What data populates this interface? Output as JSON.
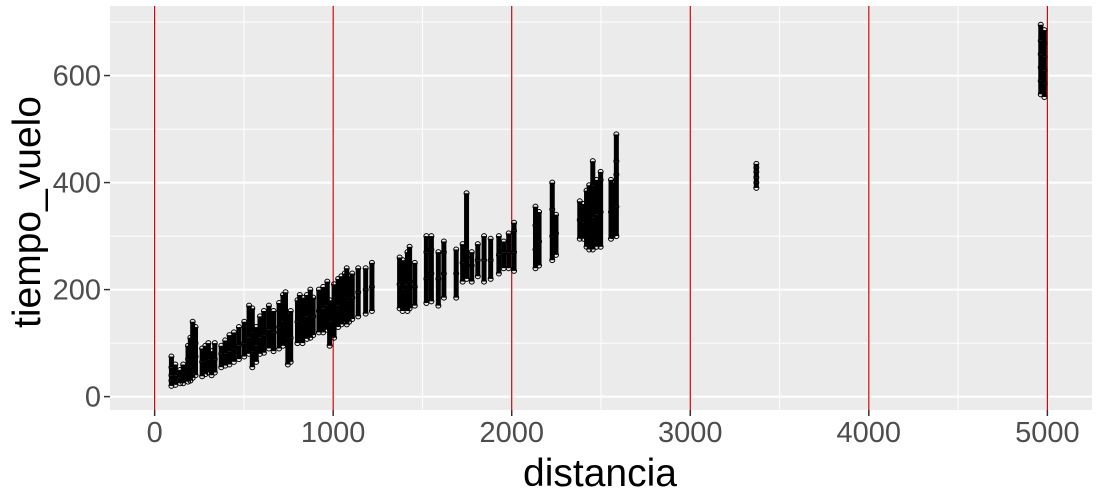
{
  "chart_data": {
    "type": "scatter",
    "xlabel": "distancia",
    "ylabel": "tiempo_vuelo",
    "xlim": [
      -250,
      5250
    ],
    "ylim": [
      -25,
      730
    ],
    "x_ticks": [
      0,
      1000,
      2000,
      3000,
      4000,
      5000
    ],
    "x_tick_labels": [
      "0",
      "1000",
      "2000",
      "3000",
      "4000",
      "5000"
    ],
    "y_ticks": [
      0,
      200,
      400,
      600
    ],
    "y_tick_labels": [
      "0",
      "200",
      "400",
      "600"
    ],
    "x_minor_ticks": [
      500,
      1500,
      2500,
      3500,
      4500
    ],
    "y_minor_ticks": [
      100,
      300,
      500,
      700
    ],
    "grid": true,
    "reference_lines": {
      "orientation": "vertical",
      "x": [
        0,
        1000,
        2000,
        3000,
        4000,
        5000
      ],
      "color": "#cc0000"
    },
    "panel_color": "#ebebeb",
    "grid_color": "#ffffff",
    "point_stroke": "#000000",
    "points": [
      [
        94,
        20
      ],
      [
        94,
        30
      ],
      [
        94,
        40
      ],
      [
        94,
        55
      ],
      [
        94,
        75
      ],
      [
        116,
        22
      ],
      [
        116,
        40
      ],
      [
        116,
        60
      ],
      [
        143,
        25
      ],
      [
        143,
        35
      ],
      [
        143,
        50
      ],
      [
        160,
        25
      ],
      [
        160,
        45
      ],
      [
        160,
        60
      ],
      [
        187,
        28
      ],
      [
        187,
        45
      ],
      [
        187,
        70
      ],
      [
        187,
        95
      ],
      [
        200,
        30
      ],
      [
        200,
        55
      ],
      [
        200,
        85
      ],
      [
        200,
        110
      ],
      [
        213,
        35
      ],
      [
        213,
        70
      ],
      [
        213,
        100
      ],
      [
        213,
        140
      ],
      [
        229,
        40
      ],
      [
        229,
        75
      ],
      [
        229,
        100
      ],
      [
        229,
        130
      ],
      [
        266,
        38
      ],
      [
        266,
        65
      ],
      [
        266,
        90
      ],
      [
        284,
        42
      ],
      [
        284,
        68
      ],
      [
        284,
        95
      ],
      [
        301,
        45
      ],
      [
        301,
        70
      ],
      [
        301,
        100
      ],
      [
        319,
        40
      ],
      [
        319,
        60
      ],
      [
        319,
        85
      ],
      [
        337,
        45
      ],
      [
        337,
        70
      ],
      [
        337,
        100
      ],
      [
        373,
        55
      ],
      [
        373,
        80
      ],
      [
        373,
        95
      ],
      [
        395,
        58
      ],
      [
        395,
        80
      ],
      [
        395,
        105
      ],
      [
        419,
        60
      ],
      [
        419,
        85
      ],
      [
        419,
        115
      ],
      [
        444,
        65
      ],
      [
        444,
        90
      ],
      [
        444,
        120
      ],
      [
        472,
        70
      ],
      [
        472,
        95
      ],
      [
        472,
        130
      ],
      [
        502,
        75
      ],
      [
        502,
        100
      ],
      [
        502,
        140
      ],
      [
        529,
        80
      ],
      [
        529,
        110
      ],
      [
        529,
        170
      ],
      [
        547,
        55
      ],
      [
        547,
        85
      ],
      [
        547,
        120
      ],
      [
        547,
        165
      ],
      [
        569,
        65
      ],
      [
        569,
        95
      ],
      [
        569,
        130
      ],
      [
        590,
        80
      ],
      [
        590,
        110
      ],
      [
        590,
        150
      ],
      [
        612,
        82
      ],
      [
        612,
        115
      ],
      [
        612,
        160
      ],
      [
        640,
        90
      ],
      [
        640,
        125
      ],
      [
        640,
        170
      ],
      [
        666,
        85
      ],
      [
        666,
        120
      ],
      [
        666,
        160
      ],
      [
        697,
        90
      ],
      [
        697,
        130
      ],
      [
        697,
        175
      ],
      [
        719,
        95
      ],
      [
        719,
        140
      ],
      [
        719,
        190
      ],
      [
        733,
        100
      ],
      [
        733,
        150
      ],
      [
        733,
        195
      ],
      [
        746,
        60
      ],
      [
        746,
        100
      ],
      [
        746,
        155
      ],
      [
        762,
        65
      ],
      [
        762,
        110
      ],
      [
        762,
        160
      ],
      [
        800,
        100
      ],
      [
        800,
        140
      ],
      [
        800,
        180
      ],
      [
        813,
        105
      ],
      [
        813,
        150
      ],
      [
        813,
        190
      ],
      [
        828,
        100
      ],
      [
        828,
        145
      ],
      [
        828,
        185
      ],
      [
        853,
        108
      ],
      [
        853,
        150
      ],
      [
        853,
        190
      ],
      [
        872,
        110
      ],
      [
        872,
        160
      ],
      [
        872,
        200
      ],
      [
        888,
        115
      ],
      [
        888,
        150
      ],
      [
        888,
        185
      ],
      [
        920,
        120
      ],
      [
        920,
        160
      ],
      [
        920,
        200
      ],
      [
        944,
        120
      ],
      [
        944,
        165
      ],
      [
        944,
        205
      ],
      [
        967,
        125
      ],
      [
        967,
        170
      ],
      [
        967,
        215
      ],
      [
        980,
        95
      ],
      [
        980,
        140
      ],
      [
        980,
        180
      ],
      [
        1005,
        110
      ],
      [
        1005,
        160
      ],
      [
        1005,
        210
      ],
      [
        1028,
        130
      ],
      [
        1028,
        170
      ],
      [
        1028,
        220
      ],
      [
        1046,
        135
      ],
      [
        1046,
        175
      ],
      [
        1046,
        225
      ],
      [
        1065,
        140
      ],
      [
        1065,
        185
      ],
      [
        1065,
        230
      ],
      [
        1076,
        135
      ],
      [
        1076,
        180
      ],
      [
        1076,
        240
      ],
      [
        1089,
        140
      ],
      [
        1089,
        180
      ],
      [
        1089,
        225
      ],
      [
        1107,
        145
      ],
      [
        1107,
        185
      ],
      [
        1107,
        230
      ],
      [
        1140,
        150
      ],
      [
        1140,
        195
      ],
      [
        1140,
        240
      ],
      [
        1182,
        155
      ],
      [
        1182,
        200
      ],
      [
        1182,
        240
      ],
      [
        1217,
        160
      ],
      [
        1217,
        205
      ],
      [
        1217,
        250
      ],
      [
        1372,
        165
      ],
      [
        1372,
        210
      ],
      [
        1372,
        260
      ],
      [
        1389,
        160
      ],
      [
        1389,
        200
      ],
      [
        1389,
        255
      ],
      [
        1416,
        160
      ],
      [
        1416,
        210
      ],
      [
        1416,
        270
      ],
      [
        1428,
        165
      ],
      [
        1428,
        215
      ],
      [
        1428,
        280
      ],
      [
        1457,
        170
      ],
      [
        1457,
        205
      ],
      [
        1457,
        250
      ],
      [
        1522,
        175
      ],
      [
        1522,
        220
      ],
      [
        1522,
        270
      ],
      [
        1522,
        300
      ],
      [
        1550,
        178
      ],
      [
        1550,
        230
      ],
      [
        1550,
        275
      ],
      [
        1550,
        300
      ],
      [
        1589,
        170
      ],
      [
        1589,
        220
      ],
      [
        1589,
        270
      ],
      [
        1620,
        185
      ],
      [
        1620,
        230
      ],
      [
        1620,
        270
      ],
      [
        1620,
        290
      ],
      [
        1689,
        185
      ],
      [
        1689,
        230
      ],
      [
        1689,
        275
      ],
      [
        1725,
        215
      ],
      [
        1725,
        250
      ],
      [
        1725,
        285
      ],
      [
        1747,
        220
      ],
      [
        1747,
        260
      ],
      [
        1747,
        380
      ],
      [
        1776,
        215
      ],
      [
        1776,
        245
      ],
      [
        1776,
        270
      ],
      [
        1810,
        225
      ],
      [
        1810,
        255
      ],
      [
        1810,
        285
      ],
      [
        1845,
        215
      ],
      [
        1845,
        255
      ],
      [
        1845,
        300
      ],
      [
        1882,
        220
      ],
      [
        1882,
        255
      ],
      [
        1882,
        295
      ],
      [
        1928,
        230
      ],
      [
        1928,
        265
      ],
      [
        1928,
        300
      ],
      [
        1955,
        240
      ],
      [
        1955,
        270
      ],
      [
        1955,
        290
      ],
      [
        1983,
        240
      ],
      [
        1983,
        270
      ],
      [
        1983,
        305
      ],
      [
        2013,
        235
      ],
      [
        2013,
        270
      ],
      [
        2013,
        310
      ],
      [
        2013,
        325
      ],
      [
        2133,
        240
      ],
      [
        2133,
        275
      ],
      [
        2133,
        320
      ],
      [
        2133,
        355
      ],
      [
        2153,
        245
      ],
      [
        2153,
        290
      ],
      [
        2153,
        345
      ],
      [
        2227,
        255
      ],
      [
        2227,
        300
      ],
      [
        2227,
        350
      ],
      [
        2227,
        400
      ],
      [
        2248,
        265
      ],
      [
        2248,
        305
      ],
      [
        2248,
        340
      ],
      [
        2381,
        295
      ],
      [
        2381,
        330
      ],
      [
        2381,
        365
      ],
      [
        2402,
        295
      ],
      [
        2402,
        325
      ],
      [
        2402,
        360
      ],
      [
        2419,
        280
      ],
      [
        2419,
        330
      ],
      [
        2419,
        385
      ],
      [
        2434,
        275
      ],
      [
        2434,
        330
      ],
      [
        2434,
        395
      ],
      [
        2454,
        275
      ],
      [
        2454,
        335
      ],
      [
        2454,
        395
      ],
      [
        2454,
        440
      ],
      [
        2475,
        280
      ],
      [
        2475,
        340
      ],
      [
        2475,
        405
      ],
      [
        2498,
        280
      ],
      [
        2498,
        345
      ],
      [
        2498,
        405
      ],
      [
        2498,
        420
      ],
      [
        2556,
        295
      ],
      [
        2556,
        345
      ],
      [
        2556,
        405
      ],
      [
        2565,
        300
      ],
      [
        2565,
        350
      ],
      [
        2565,
        400
      ],
      [
        2586,
        300
      ],
      [
        2586,
        355
      ],
      [
        2586,
        415
      ],
      [
        2586,
        440
      ],
      [
        2586,
        490
      ],
      [
        3370,
        390
      ],
      [
        3370,
        400
      ],
      [
        3370,
        410
      ],
      [
        3370,
        420
      ],
      [
        3370,
        428
      ],
      [
        3370,
        435
      ],
      [
        4963,
        565
      ],
      [
        4963,
        590
      ],
      [
        4963,
        615
      ],
      [
        4963,
        640
      ],
      [
        4963,
        665
      ],
      [
        4963,
        695
      ],
      [
        4983,
        560
      ],
      [
        4983,
        585
      ],
      [
        4983,
        610
      ],
      [
        4983,
        635
      ],
      [
        4983,
        660
      ],
      [
        4983,
        685
      ]
    ]
  }
}
